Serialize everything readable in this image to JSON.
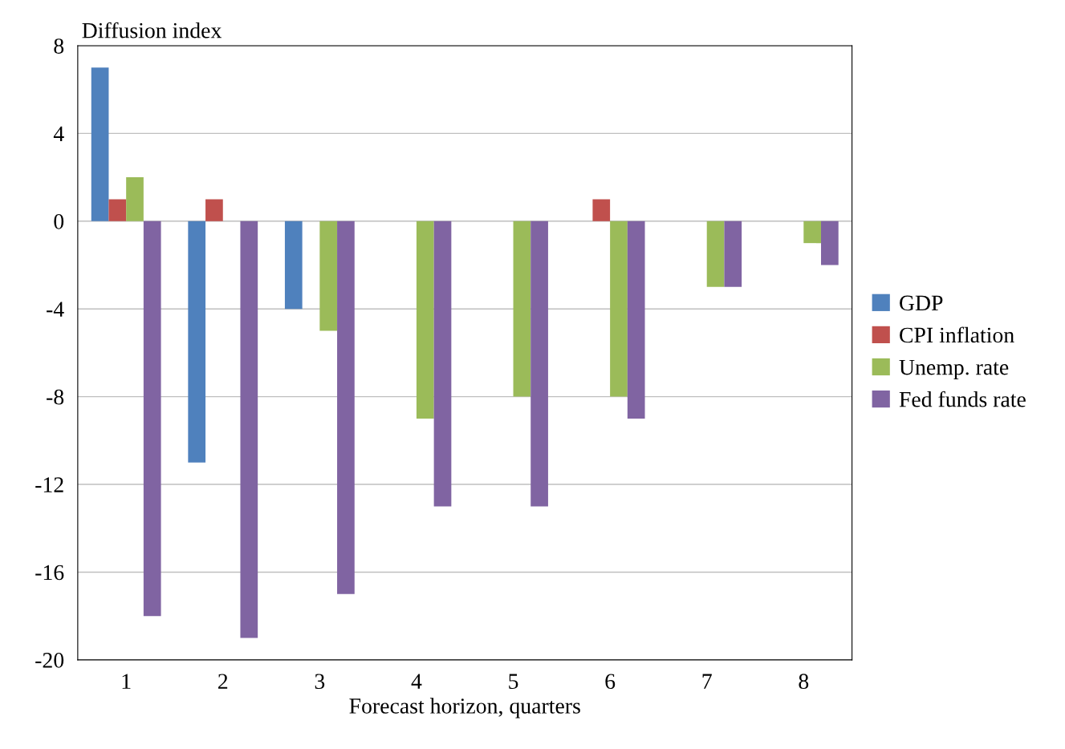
{
  "chart_data": {
    "type": "bar",
    "ylabel": "Diffusion index",
    "xlabel": "Forecast horizon, quarters",
    "categories": [
      "1",
      "2",
      "3",
      "4",
      "5",
      "6",
      "7",
      "8"
    ],
    "series": [
      {
        "name": "GDP",
        "color": "#4f81bd",
        "values": [
          7,
          -11,
          -4,
          0,
          0,
          0,
          0,
          0
        ]
      },
      {
        "name": "CPI inflation",
        "color": "#c0504d",
        "values": [
          1,
          1,
          0,
          0,
          0,
          1,
          0,
          0
        ]
      },
      {
        "name": "Unemp. rate",
        "color": "#9bbb59",
        "values": [
          2,
          0,
          -5,
          -9,
          -8,
          -8,
          -3,
          -1
        ]
      },
      {
        "name": "Fed funds rate",
        "color": "#8064a2",
        "values": [
          -18,
          -19,
          -17,
          -13,
          -13,
          -9,
          -3,
          -2
        ]
      }
    ],
    "ylim": [
      -20,
      8
    ],
    "yticks": [
      -20,
      -16,
      -12,
      -8,
      -4,
      0,
      4,
      8
    ],
    "grid": "y",
    "legend": "right"
  }
}
